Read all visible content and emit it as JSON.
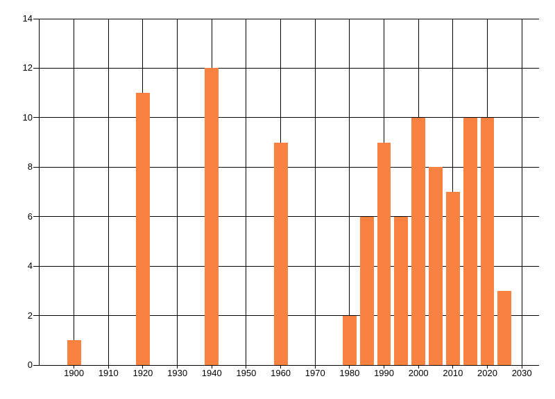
{
  "chart_data": {
    "type": "bar",
    "title": "",
    "xlabel": "",
    "ylabel": "",
    "x": [
      1900,
      1920,
      1940,
      1960,
      1980,
      1985,
      1990,
      1995,
      2000,
      2005,
      2010,
      2015,
      2020,
      2025
    ],
    "values": [
      1,
      11,
      12,
      9,
      2,
      6,
      9,
      6,
      10,
      8,
      7,
      10,
      10,
      3
    ],
    "xlim": [
      1890,
      2035
    ],
    "ylim": [
      0,
      14
    ],
    "x_ticks": [
      1900,
      1910,
      1920,
      1930,
      1940,
      1950,
      1960,
      1970,
      1980,
      1990,
      2000,
      2010,
      2020,
      2030
    ],
    "y_ticks": [
      0,
      2,
      4,
      6,
      8,
      10,
      12,
      14
    ],
    "bar_width_x_units": 4,
    "grid": "on",
    "legend": "none",
    "colors": {
      "bar": "#FA8240",
      "grid": "#000000",
      "axis": "#000000",
      "label_text": "#000000",
      "background": "#FFFFFF"
    }
  }
}
